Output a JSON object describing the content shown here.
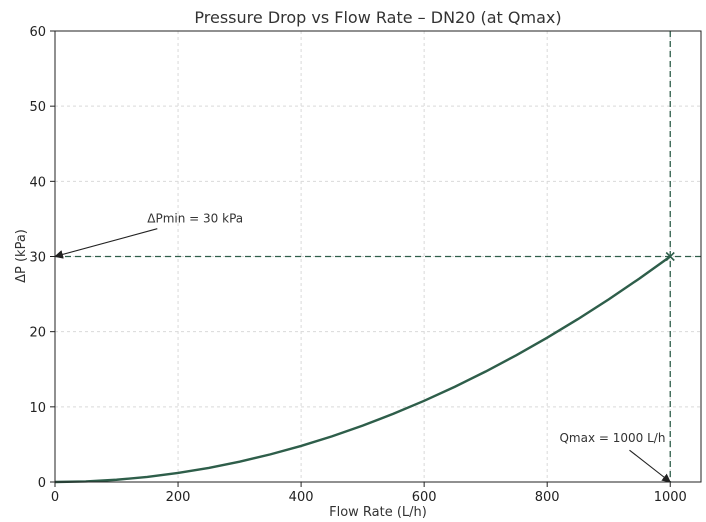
{
  "chart_data": {
    "type": "line",
    "title": "Pressure Drop vs Flow Rate – DN20 (at Qmax)",
    "xlabel": "Flow Rate (L/h)",
    "ylabel": "ΔP (kPa)",
    "xlim": [
      0,
      1050
    ],
    "ylim": [
      0,
      60
    ],
    "xticks": [
      0,
      200,
      400,
      600,
      800,
      1000
    ],
    "yticks": [
      0,
      10,
      20,
      30,
      40,
      50,
      60
    ],
    "grid": true,
    "series": [
      {
        "color": "#2e5e4a",
        "x": [
          0,
          50,
          100,
          150,
          200,
          250,
          300,
          350,
          400,
          450,
          500,
          550,
          600,
          650,
          700,
          750,
          800,
          850,
          900,
          950,
          1000
        ],
        "y": [
          0,
          0.075,
          0.3,
          0.675,
          1.2,
          1.875,
          2.7,
          3.675,
          4.8,
          6.075,
          7.5,
          9.075,
          10.8,
          12.675,
          14.7,
          16.875,
          19.2,
          21.675,
          24.3,
          27.075,
          30
        ]
      }
    ],
    "reference_lines": [
      {
        "orientation": "horizontal",
        "value": 30
      },
      {
        "orientation": "vertical",
        "value": 1000
      }
    ],
    "marker": {
      "x": 1000,
      "y": 30,
      "symbol": "x"
    },
    "annotations": [
      {
        "text": "ΔPmin = 30 kPa",
        "point": [
          0,
          30
        ],
        "text_at": [
          150,
          34.5
        ]
      },
      {
        "text": "Qmax = 1000 L/h",
        "point": [
          1000,
          0
        ],
        "text_at": [
          820,
          5.3
        ]
      }
    ]
  }
}
